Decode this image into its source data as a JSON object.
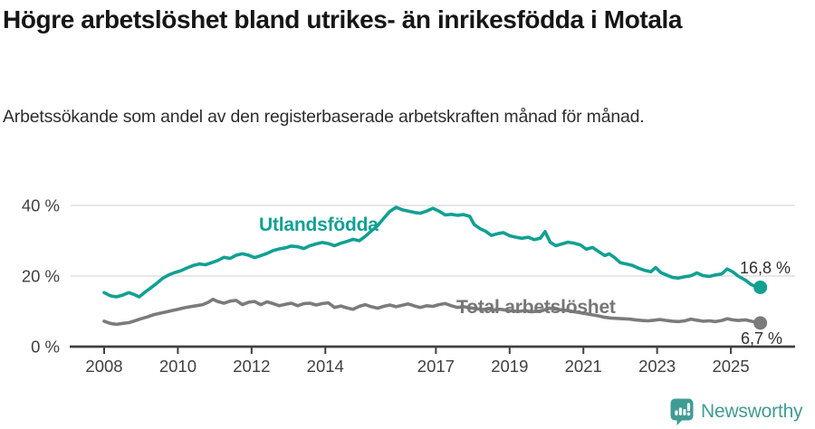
{
  "header": {
    "title": "Högre arbetslöshet bland utrikes- än inrikesfödda i Motala",
    "subtitle": "Arbetssökande som andel av den registerbaserade arbetskraften månad för månad."
  },
  "footer": {
    "brand": "Newsworthy",
    "brand_color": "#3F9C94"
  },
  "chart_data": {
    "type": "line",
    "title": "Högre arbetslöshet bland utrikes- än inrikesfödda i Motala",
    "xlabel": "",
    "ylabel": "",
    "xlim": [
      2007.7,
      2026.4
    ],
    "ylim": [
      0,
      44
    ],
    "grid": "horizontal",
    "legend_position": "inline-labels",
    "axis_color": "#404040",
    "gridline_color": "#e0e0e0",
    "y_ticks": [
      {
        "value": 0,
        "label": "0 %"
      },
      {
        "value": 20,
        "label": "20 %"
      },
      {
        "value": 40,
        "label": "40 %"
      }
    ],
    "x_ticks": [
      {
        "value": 2008,
        "label": "2008"
      },
      {
        "value": 2010,
        "label": "2010"
      },
      {
        "value": 2012,
        "label": "2012"
      },
      {
        "value": 2014,
        "label": "2014"
      },
      {
        "value": 2017,
        "label": "2017"
      },
      {
        "value": 2019,
        "label": "2019"
      },
      {
        "value": 2021,
        "label": "2021"
      },
      {
        "value": 2023,
        "label": "2023"
      },
      {
        "value": 2025,
        "label": "2025"
      }
    ],
    "series": [
      {
        "name": "Utlandsfödda",
        "color": "#12A093",
        "end_label": "16,8 %",
        "end_value": 16.8,
        "points": [
          [
            2008.0,
            15.3
          ],
          [
            2008.17,
            14.4
          ],
          [
            2008.33,
            14.1
          ],
          [
            2008.5,
            14.6
          ],
          [
            2008.67,
            15.3
          ],
          [
            2008.83,
            14.7
          ],
          [
            2008.95,
            14.1
          ],
          [
            2009.08,
            15.2
          ],
          [
            2009.25,
            16.5
          ],
          [
            2009.42,
            17.9
          ],
          [
            2009.58,
            19.3
          ],
          [
            2009.75,
            20.3
          ],
          [
            2009.92,
            21.0
          ],
          [
            2010.08,
            21.5
          ],
          [
            2010.25,
            22.3
          ],
          [
            2010.42,
            23.0
          ],
          [
            2010.58,
            23.4
          ],
          [
            2010.75,
            23.2
          ],
          [
            2010.92,
            23.8
          ],
          [
            2011.08,
            24.4
          ],
          [
            2011.25,
            25.3
          ],
          [
            2011.42,
            25.0
          ],
          [
            2011.58,
            25.9
          ],
          [
            2011.75,
            26.3
          ],
          [
            2011.92,
            25.9
          ],
          [
            2012.08,
            25.2
          ],
          [
            2012.25,
            25.8
          ],
          [
            2012.42,
            26.4
          ],
          [
            2012.58,
            27.2
          ],
          [
            2012.75,
            27.7
          ],
          [
            2012.92,
            28.0
          ],
          [
            2013.08,
            28.5
          ],
          [
            2013.25,
            28.3
          ],
          [
            2013.42,
            27.8
          ],
          [
            2013.58,
            28.6
          ],
          [
            2013.75,
            29.1
          ],
          [
            2013.92,
            29.5
          ],
          [
            2014.08,
            29.2
          ],
          [
            2014.25,
            28.6
          ],
          [
            2014.42,
            29.3
          ],
          [
            2014.58,
            29.8
          ],
          [
            2014.75,
            30.4
          ],
          [
            2014.92,
            30.0
          ],
          [
            2015.08,
            31.2
          ],
          [
            2015.25,
            32.8
          ],
          [
            2015.42,
            34.3
          ],
          [
            2015.58,
            36.3
          ],
          [
            2015.75,
            38.3
          ],
          [
            2015.92,
            39.5
          ],
          [
            2016.08,
            38.8
          ],
          [
            2016.25,
            38.4
          ],
          [
            2016.42,
            38.0
          ],
          [
            2016.58,
            37.8
          ],
          [
            2016.75,
            38.4
          ],
          [
            2016.92,
            39.2
          ],
          [
            2017.08,
            38.4
          ],
          [
            2017.25,
            37.3
          ],
          [
            2017.42,
            37.5
          ],
          [
            2017.58,
            37.2
          ],
          [
            2017.75,
            37.4
          ],
          [
            2017.92,
            36.9
          ],
          [
            2018.04,
            34.6
          ],
          [
            2018.2,
            33.4
          ],
          [
            2018.35,
            32.7
          ],
          [
            2018.5,
            31.5
          ],
          [
            2018.67,
            32.0
          ],
          [
            2018.83,
            32.3
          ],
          [
            2019.0,
            31.4
          ],
          [
            2019.17,
            31.0
          ],
          [
            2019.33,
            30.7
          ],
          [
            2019.5,
            31.0
          ],
          [
            2019.67,
            30.3
          ],
          [
            2019.83,
            30.7
          ],
          [
            2019.96,
            32.6
          ],
          [
            2020.1,
            29.6
          ],
          [
            2020.25,
            28.6
          ],
          [
            2020.42,
            29.1
          ],
          [
            2020.58,
            29.6
          ],
          [
            2020.75,
            29.3
          ],
          [
            2020.92,
            28.8
          ],
          [
            2021.08,
            27.6
          ],
          [
            2021.25,
            28.1
          ],
          [
            2021.42,
            26.9
          ],
          [
            2021.58,
            25.8
          ],
          [
            2021.7,
            26.3
          ],
          [
            2021.85,
            25.2
          ],
          [
            2022.0,
            23.8
          ],
          [
            2022.17,
            23.4
          ],
          [
            2022.33,
            23.0
          ],
          [
            2022.5,
            22.2
          ],
          [
            2022.67,
            21.6
          ],
          [
            2022.83,
            21.2
          ],
          [
            2022.96,
            22.4
          ],
          [
            2023.1,
            21.0
          ],
          [
            2023.25,
            20.3
          ],
          [
            2023.42,
            19.6
          ],
          [
            2023.58,
            19.4
          ],
          [
            2023.75,
            19.8
          ],
          [
            2023.92,
            20.1
          ],
          [
            2024.08,
            20.9
          ],
          [
            2024.25,
            20.1
          ],
          [
            2024.42,
            19.9
          ],
          [
            2024.58,
            20.3
          ],
          [
            2024.75,
            20.6
          ],
          [
            2024.9,
            22.0
          ],
          [
            2025.05,
            21.2
          ],
          [
            2025.2,
            20.0
          ],
          [
            2025.4,
            18.8
          ],
          [
            2025.55,
            17.6
          ],
          [
            2025.7,
            16.9
          ],
          [
            2025.8,
            16.8
          ]
        ]
      },
      {
        "name": "Total arbetslöshet",
        "color": "#7B7B7B",
        "end_label": "6,7 %",
        "end_value": 6.7,
        "points": [
          [
            2008.0,
            7.2
          ],
          [
            2008.17,
            6.6
          ],
          [
            2008.33,
            6.3
          ],
          [
            2008.5,
            6.6
          ],
          [
            2008.67,
            6.8
          ],
          [
            2008.83,
            7.3
          ],
          [
            2009.0,
            7.9
          ],
          [
            2009.17,
            8.4
          ],
          [
            2009.33,
            9.0
          ],
          [
            2009.5,
            9.4
          ],
          [
            2009.67,
            9.8
          ],
          [
            2009.83,
            10.2
          ],
          [
            2010.0,
            10.6
          ],
          [
            2010.17,
            11.0
          ],
          [
            2010.33,
            11.3
          ],
          [
            2010.5,
            11.6
          ],
          [
            2010.67,
            11.9
          ],
          [
            2010.83,
            12.6
          ],
          [
            2010.95,
            13.4
          ],
          [
            2011.08,
            12.8
          ],
          [
            2011.25,
            12.3
          ],
          [
            2011.42,
            12.9
          ],
          [
            2011.58,
            13.1
          ],
          [
            2011.75,
            11.9
          ],
          [
            2011.92,
            12.6
          ],
          [
            2012.08,
            12.8
          ],
          [
            2012.25,
            11.9
          ],
          [
            2012.42,
            12.7
          ],
          [
            2012.58,
            12.2
          ],
          [
            2012.75,
            11.6
          ],
          [
            2012.92,
            12.0
          ],
          [
            2013.08,
            12.3
          ],
          [
            2013.25,
            11.6
          ],
          [
            2013.42,
            12.2
          ],
          [
            2013.58,
            12.3
          ],
          [
            2013.75,
            11.8
          ],
          [
            2013.92,
            12.2
          ],
          [
            2014.08,
            12.4
          ],
          [
            2014.25,
            11.1
          ],
          [
            2014.42,
            11.5
          ],
          [
            2014.58,
            11.0
          ],
          [
            2014.75,
            10.6
          ],
          [
            2014.92,
            11.4
          ],
          [
            2015.08,
            11.9
          ],
          [
            2015.25,
            11.3
          ],
          [
            2015.42,
            10.9
          ],
          [
            2015.58,
            11.4
          ],
          [
            2015.75,
            11.8
          ],
          [
            2015.92,
            11.3
          ],
          [
            2016.08,
            11.7
          ],
          [
            2016.25,
            12.1
          ],
          [
            2016.42,
            11.5
          ],
          [
            2016.58,
            11.1
          ],
          [
            2016.75,
            11.6
          ],
          [
            2016.92,
            11.4
          ],
          [
            2017.08,
            11.9
          ],
          [
            2017.25,
            12.2
          ],
          [
            2017.42,
            11.6
          ],
          [
            2017.58,
            11.1
          ],
          [
            2017.75,
            11.3
          ],
          [
            2017.92,
            11.0
          ],
          [
            2018.08,
            10.8
          ],
          [
            2018.25,
            10.5
          ],
          [
            2018.42,
            10.7
          ],
          [
            2018.58,
            10.4
          ],
          [
            2018.75,
            10.6
          ],
          [
            2018.92,
            10.3
          ],
          [
            2019.08,
            10.1
          ],
          [
            2019.25,
            10.0
          ],
          [
            2019.42,
            10.2
          ],
          [
            2019.58,
            9.9
          ],
          [
            2019.75,
            10.0
          ],
          [
            2019.92,
            10.3
          ],
          [
            2020.08,
            10.9
          ],
          [
            2020.25,
            10.6
          ],
          [
            2020.42,
            10.4
          ],
          [
            2020.58,
            10.2
          ],
          [
            2020.75,
            9.9
          ],
          [
            2020.92,
            9.6
          ],
          [
            2021.08,
            9.3
          ],
          [
            2021.25,
            9.0
          ],
          [
            2021.42,
            8.7
          ],
          [
            2021.58,
            8.3
          ],
          [
            2021.75,
            8.1
          ],
          [
            2021.92,
            8.0
          ],
          [
            2022.08,
            7.9
          ],
          [
            2022.25,
            7.8
          ],
          [
            2022.42,
            7.6
          ],
          [
            2022.58,
            7.4
          ],
          [
            2022.75,
            7.3
          ],
          [
            2022.92,
            7.5
          ],
          [
            2023.08,
            7.7
          ],
          [
            2023.25,
            7.4
          ],
          [
            2023.42,
            7.2
          ],
          [
            2023.58,
            7.1
          ],
          [
            2023.75,
            7.3
          ],
          [
            2023.92,
            7.8
          ],
          [
            2024.08,
            7.5
          ],
          [
            2024.25,
            7.2
          ],
          [
            2024.42,
            7.3
          ],
          [
            2024.58,
            7.1
          ],
          [
            2024.75,
            7.4
          ],
          [
            2024.9,
            7.9
          ],
          [
            2025.05,
            7.6
          ],
          [
            2025.2,
            7.4
          ],
          [
            2025.4,
            7.6
          ],
          [
            2025.55,
            7.2
          ],
          [
            2025.7,
            6.9
          ],
          [
            2025.8,
            6.7
          ]
        ]
      }
    ]
  }
}
